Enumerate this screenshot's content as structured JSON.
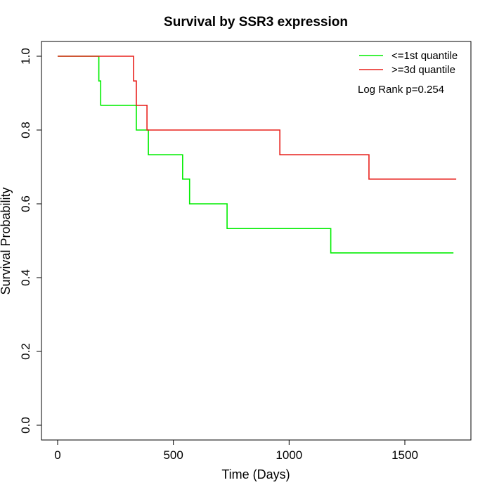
{
  "chart_data": {
    "type": "line",
    "subtype": "kaplan-meier-step",
    "title": "Survival by SSR3 expression",
    "xlabel": "Time (Days)",
    "ylabel": "Survival Probability",
    "xlim": [
      0,
      1760
    ],
    "ylim": [
      0,
      1
    ],
    "xticks": [
      0,
      500,
      1000,
      1500
    ],
    "yticks": [
      0.0,
      0.2,
      0.4,
      0.6,
      0.8,
      1.0
    ],
    "xtick_labels": [
      "0",
      "500",
      "1000",
      "1500"
    ],
    "ytick_labels": [
      "0.0",
      "0.2",
      "0.4",
      "0.6",
      "0.8",
      "1.0"
    ],
    "grid": false,
    "legend_position": "top-right",
    "annotation": "Log Rank p=0.254",
    "series": [
      {
        "name": "<=1st quantile",
        "color": "#00ee00",
        "x": [
          0,
          178,
          186,
          340,
          392,
          540,
          570,
          732,
          1180,
          1710
        ],
        "y": [
          1.0,
          0.933,
          0.867,
          0.8,
          0.733,
          0.667,
          0.6,
          0.533,
          0.467,
          0.467
        ]
      },
      {
        "name": ">=3d quantile",
        "color": "#e8201c",
        "x": [
          0,
          328,
          340,
          386,
          960,
          1345,
          1722
        ],
        "y": [
          1.0,
          0.933,
          0.867,
          0.8,
          0.733,
          0.667,
          0.667
        ]
      }
    ]
  }
}
